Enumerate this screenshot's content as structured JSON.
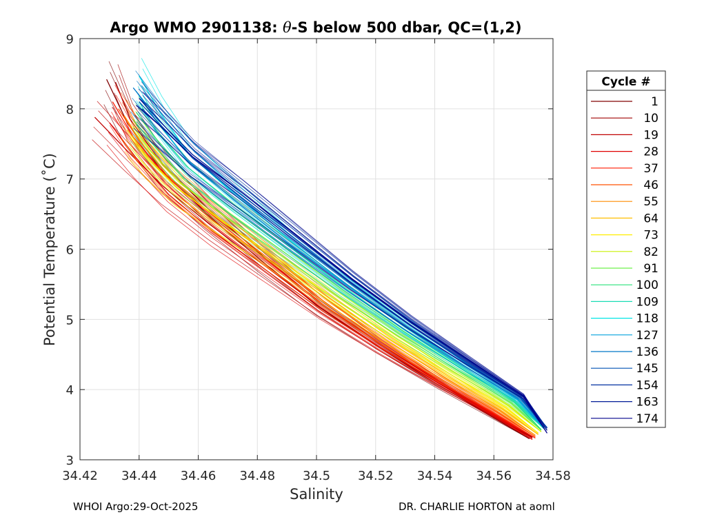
{
  "chart_data": {
    "type": "line",
    "title_prefix": "Argo WMO 2901138: ",
    "title_theta": "θ",
    "title_suffix": "-S below 500 dbar,  QC=(1,2)",
    "xlabel": "Salinity",
    "ylabel": "Potential Temperature (˚C)",
    "xlim": [
      34.42,
      34.58
    ],
    "ylim": [
      3,
      9
    ],
    "xticks": [
      34.42,
      34.44,
      34.46,
      34.48,
      34.5,
      34.52,
      34.54,
      34.56,
      34.58
    ],
    "xtick_labels": [
      "34.42",
      "34.44",
      "34.46",
      "34.48",
      "34.5",
      "34.52",
      "34.54",
      "34.56",
      "34.58"
    ],
    "yticks": [
      3,
      4,
      5,
      6,
      7,
      8,
      9
    ],
    "ytick_labels": [
      "3",
      "4",
      "5",
      "6",
      "7",
      "8",
      "9"
    ],
    "grid": true,
    "legend_title": "Cycle #",
    "legend_position": "outside-right",
    "series": [
      {
        "name": "1",
        "color": "#800000",
        "S": [
          34.429,
          34.436,
          34.447,
          34.463,
          34.481,
          34.5,
          34.52,
          34.54,
          34.558,
          34.572
        ],
        "T": [
          8.42,
          7.8,
          7.15,
          6.5,
          5.85,
          5.2,
          4.63,
          4.1,
          3.65,
          3.3
        ]
      },
      {
        "name": "10",
        "color": "#A00000",
        "S": [
          34.432,
          34.437,
          34.448,
          34.464,
          34.482,
          34.501,
          34.521,
          34.541,
          34.559,
          34.573
        ],
        "T": [
          8.38,
          7.85,
          7.2,
          6.55,
          5.9,
          5.25,
          4.66,
          4.12,
          3.67,
          3.32
        ]
      },
      {
        "name": "19",
        "color": "#C00000",
        "S": [
          34.425,
          34.436,
          34.448,
          34.464,
          34.482,
          34.501,
          34.521,
          34.541,
          34.559,
          34.573
        ],
        "T": [
          7.88,
          7.4,
          6.9,
          6.35,
          5.78,
          5.18,
          4.62,
          4.1,
          3.66,
          3.31
        ]
      },
      {
        "name": "28",
        "color": "#E00000",
        "S": [
          34.43,
          34.439,
          34.45,
          34.465,
          34.483,
          34.502,
          34.522,
          34.542,
          34.56,
          34.573
        ],
        "T": [
          7.8,
          7.3,
          6.78,
          6.25,
          5.7,
          5.12,
          4.58,
          4.07,
          3.63,
          3.29
        ]
      },
      {
        "name": "37",
        "color": "#FF1A00",
        "S": [
          34.431,
          34.438,
          34.449,
          34.465,
          34.483,
          34.502,
          34.522,
          34.542,
          34.56,
          34.574
        ],
        "T": [
          8.1,
          7.6,
          7.05,
          6.45,
          5.85,
          5.22,
          4.64,
          4.11,
          3.66,
          3.31
        ]
      },
      {
        "name": "46",
        "color": "#FF5000",
        "S": [
          34.433,
          34.44,
          34.45,
          34.466,
          34.484,
          34.503,
          34.523,
          34.543,
          34.561,
          34.574
        ],
        "T": [
          8.0,
          7.55,
          7.02,
          6.44,
          5.86,
          5.24,
          4.66,
          4.13,
          3.68,
          3.33
        ]
      },
      {
        "name": "55",
        "color": "#FF8C00",
        "S": [
          34.435,
          34.441,
          34.451,
          34.467,
          34.485,
          34.504,
          34.524,
          34.544,
          34.562,
          34.574
        ],
        "T": [
          7.9,
          7.5,
          7.0,
          6.45,
          5.88,
          5.27,
          4.69,
          4.16,
          3.7,
          3.35
        ]
      },
      {
        "name": "64",
        "color": "#FFBE00",
        "S": [
          34.436,
          34.442,
          34.452,
          34.468,
          34.486,
          34.505,
          34.525,
          34.545,
          34.563,
          34.575
        ],
        "T": [
          7.7,
          7.35,
          6.9,
          6.4,
          5.86,
          5.28,
          4.71,
          4.18,
          3.72,
          3.36
        ]
      },
      {
        "name": "73",
        "color": "#FFEE00",
        "S": [
          34.437,
          34.443,
          34.453,
          34.469,
          34.487,
          34.506,
          34.526,
          34.546,
          34.564,
          34.575
        ],
        "T": [
          7.6,
          7.28,
          6.86,
          6.38,
          5.86,
          5.29,
          4.73,
          4.2,
          3.74,
          3.38
        ]
      },
      {
        "name": "82",
        "color": "#C8F000",
        "S": [
          34.438,
          34.444,
          34.454,
          34.47,
          34.488,
          34.507,
          34.527,
          34.547,
          34.565,
          34.576
        ],
        "T": [
          7.75,
          7.4,
          6.95,
          6.45,
          5.92,
          5.34,
          4.77,
          4.24,
          3.77,
          3.4
        ]
      },
      {
        "name": "91",
        "color": "#6EF04A",
        "S": [
          34.438,
          34.445,
          34.455,
          34.471,
          34.489,
          34.508,
          34.528,
          34.548,
          34.566,
          34.576
        ],
        "T": [
          7.85,
          7.48,
          7.02,
          6.5,
          5.96,
          5.38,
          4.8,
          4.27,
          3.8,
          3.42
        ]
      },
      {
        "name": "100",
        "color": "#28E07A",
        "S": [
          34.439,
          34.446,
          34.456,
          34.472,
          34.49,
          34.509,
          34.529,
          34.549,
          34.567,
          34.576
        ],
        "T": [
          7.95,
          7.56,
          7.08,
          6.56,
          6.01,
          5.42,
          4.84,
          4.3,
          3.82,
          3.43
        ]
      },
      {
        "name": "109",
        "color": "#1ADCB4",
        "S": [
          34.44,
          34.446,
          34.456,
          34.472,
          34.49,
          34.509,
          34.529,
          34.549,
          34.567,
          34.577
        ],
        "T": [
          8.1,
          7.68,
          7.18,
          6.63,
          6.06,
          5.46,
          4.87,
          4.32,
          3.84,
          3.44
        ]
      },
      {
        "name": "118",
        "color": "#00E6E6",
        "S": [
          34.44,
          34.447,
          34.457,
          34.473,
          34.491,
          34.51,
          34.53,
          34.55,
          34.568,
          34.577
        ],
        "T": [
          8.47,
          7.95,
          7.35,
          6.75,
          6.13,
          5.5,
          4.9,
          4.34,
          3.86,
          3.45
        ]
      },
      {
        "name": "127",
        "color": "#00A0DC",
        "S": [
          34.439,
          34.446,
          34.456,
          34.472,
          34.49,
          34.51,
          34.53,
          34.55,
          34.568,
          34.577
        ],
        "T": [
          8.25,
          7.82,
          7.28,
          6.7,
          6.1,
          5.49,
          4.89,
          4.34,
          3.86,
          3.45
        ]
      },
      {
        "name": "136",
        "color": "#0078C8",
        "S": [
          34.438,
          34.446,
          34.457,
          34.473,
          34.491,
          34.511,
          34.531,
          34.551,
          34.569,
          34.577
        ],
        "T": [
          8.3,
          7.88,
          7.35,
          6.78,
          6.17,
          5.54,
          4.93,
          4.37,
          3.88,
          3.46
        ]
      },
      {
        "name": "145",
        "color": "#0050B4",
        "S": [
          34.44,
          34.447,
          34.458,
          34.474,
          34.492,
          34.511,
          34.531,
          34.551,
          34.569,
          34.578
        ],
        "T": [
          8.1,
          7.78,
          7.3,
          6.76,
          6.17,
          5.55,
          4.94,
          4.38,
          3.89,
          3.46
        ]
      },
      {
        "name": "154",
        "color": "#0030A0",
        "S": [
          34.441,
          34.448,
          34.459,
          34.475,
          34.493,
          34.512,
          34.532,
          34.552,
          34.57,
          34.578
        ],
        "T": [
          8.0,
          7.72,
          7.28,
          6.76,
          6.18,
          5.56,
          4.95,
          4.39,
          3.9,
          3.45
        ]
      },
      {
        "name": "163",
        "color": "#001A96",
        "S": [
          34.44,
          34.447,
          34.458,
          34.475,
          34.493,
          34.512,
          34.532,
          34.552,
          34.57,
          34.578
        ],
        "T": [
          8.15,
          7.82,
          7.35,
          6.8,
          6.2,
          5.57,
          4.96,
          4.4,
          3.91,
          3.42
        ]
      },
      {
        "name": "174",
        "color": "#00008C",
        "S": [
          34.439,
          34.447,
          34.458,
          34.475,
          34.493,
          34.512,
          34.532,
          34.552,
          34.57,
          34.578
        ],
        "T": [
          8.05,
          7.76,
          7.32,
          6.8,
          6.21,
          5.58,
          4.97,
          4.41,
          3.91,
          3.38
        ]
      }
    ]
  },
  "footer": {
    "left": "WHOI Argo:29-Oct-2025",
    "right": "DR. CHARLIE HORTON at aoml"
  }
}
